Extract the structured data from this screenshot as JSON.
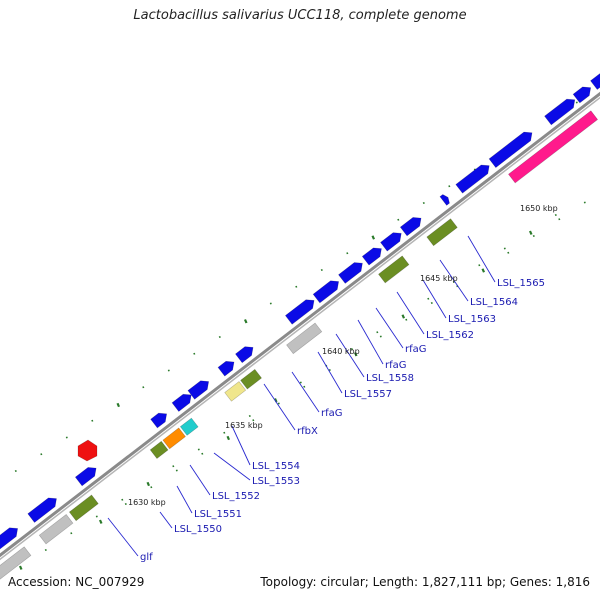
{
  "title": "Lactobacillus salivarius UCC118, complete genome",
  "accession_label": "Accession: NC_007929",
  "summary": "Topology: circular; Length: 1,827,111 bp; Genes: 1,816",
  "scale_labels": [
    "1630 kbp",
    "1635 kbp",
    "1640 kbp",
    "1645 kbp",
    "1650 kbp"
  ],
  "gene_labels": [
    "glf",
    "LSL_1550",
    "LSL_1551",
    "LSL_1552",
    "LSL_1553",
    "LSL_1554",
    "rfbX",
    "rfaG",
    "LSL_1557",
    "LSL_1558",
    "rfaG",
    "rfaG",
    "LSL_1562",
    "LSL_1563",
    "LSL_1564",
    "LSL_1565"
  ],
  "colors": {
    "backbone": "#8a8a8a",
    "forward_gene": "#0a0ae6",
    "gray_feature": "#c0c0c0",
    "olive_feature": "#6b8e23",
    "magenta_feature": "#ff1a8c",
    "cyan_feature": "#22cccc",
    "orange_feature": "#ff8c00",
    "khaki_feature": "#f0e68c",
    "red_feature": "#ee1111",
    "tick_green": "#2a7a2a",
    "label_blue": "#1a1ab0"
  }
}
